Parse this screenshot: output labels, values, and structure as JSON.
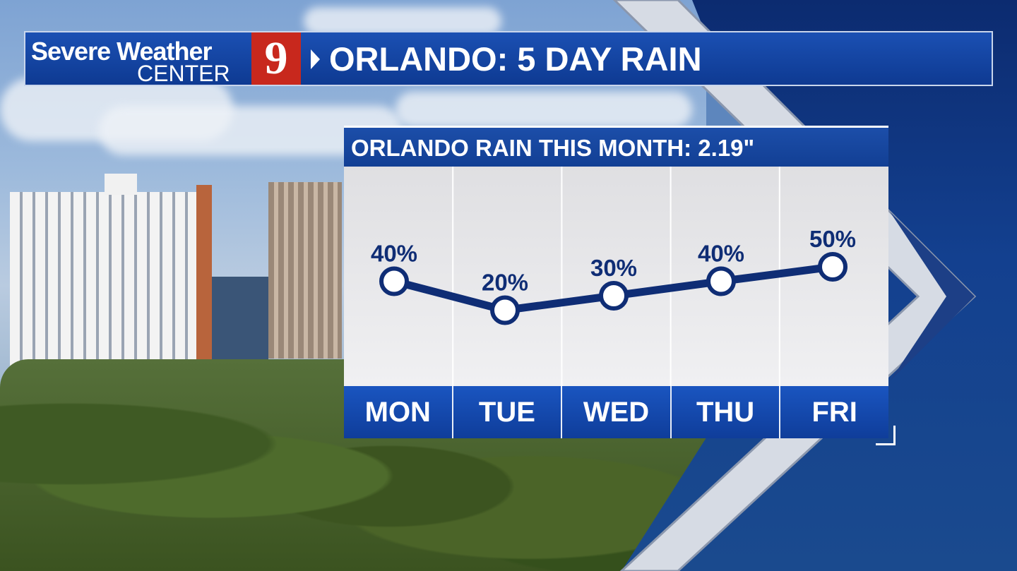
{
  "header": {
    "brand_line1": "Severe Weather",
    "brand_line2": "CENTER",
    "brand_number": "9",
    "title": "ORLANDO: 5 DAY RAIN"
  },
  "colors": {
    "header_blue": "#1647a6",
    "line_navy": "#0f2d75",
    "logo_red": "#c8281d",
    "card_bg": "#ececee"
  },
  "chart_data": {
    "type": "line",
    "title": "ORLANDO RAIN THIS MONTH: 2.19\"",
    "categories": [
      "MON",
      "TUE",
      "WED",
      "THU",
      "FRI"
    ],
    "values": [
      40,
      20,
      30,
      40,
      50
    ],
    "labels": [
      "40%",
      "20%",
      "30%",
      "40%",
      "50%"
    ],
    "ylim": [
      0,
      100
    ],
    "grid": "vertical"
  }
}
